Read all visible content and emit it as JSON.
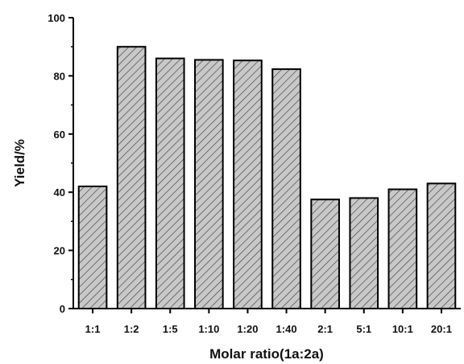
{
  "chart_data": {
    "type": "bar",
    "xlabel": "Molar ratio(1a:2a)",
    "ylabel": "Yield/%",
    "categories": [
      "1:1",
      "1:2",
      "1:5",
      "1:10",
      "1:20",
      "1:40",
      "2:1",
      "5:1",
      "10:1",
      "20:1"
    ],
    "values": [
      42,
      90,
      86,
      85.5,
      85.3,
      82.3,
      37.5,
      38,
      41,
      43
    ],
    "ylim": [
      0,
      100
    ],
    "yticks": [
      "0",
      "20",
      "40",
      "60",
      "80",
      "100"
    ],
    "grid": false,
    "bar_fill": "#c8c8c8",
    "hatch": "diagonal",
    "bar_stroke": "#000000"
  }
}
